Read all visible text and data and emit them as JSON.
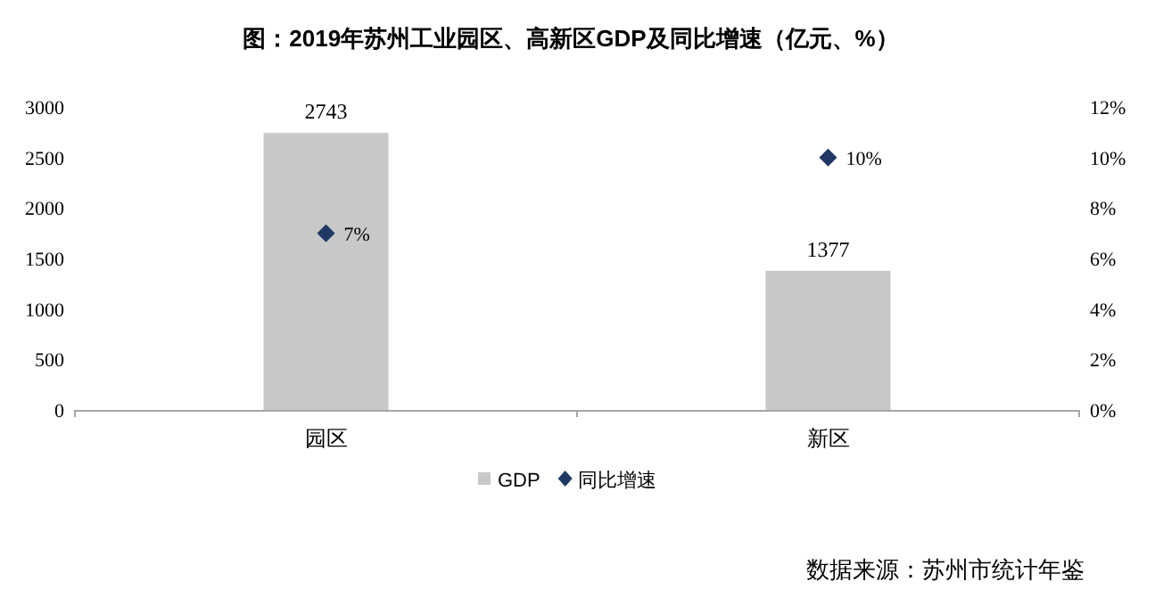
{
  "chart_data": {
    "type": "bar",
    "title": "图：2019年苏州工业园区、高新区GDP及同比增速（亿元、%）",
    "categories": [
      "园区",
      "新区"
    ],
    "series": [
      {
        "name": "GDP",
        "color": "#c8c8c8",
        "values": [
          2743,
          1377
        ],
        "value_labels": [
          "2743",
          "1377"
        ]
      },
      {
        "name": "同比增速",
        "type": "scatter",
        "axis": "y2",
        "color": "#1f3864",
        "marker": "diamond",
        "values": [
          7,
          10
        ],
        "value_labels": [
          "7%",
          "10%"
        ]
      }
    ],
    "ylim": [
      0,
      3000
    ],
    "yticks": [
      0,
      500,
      1000,
      1500,
      2000,
      2500,
      3000
    ],
    "y2lim": [
      0,
      12
    ],
    "y2ticks": [
      {
        "value": 0,
        "label": "0%"
      },
      {
        "value": 2,
        "label": "2%"
      },
      {
        "value": 4,
        "label": "4%"
      },
      {
        "value": 6,
        "label": "6%"
      },
      {
        "value": 8,
        "label": "8%"
      },
      {
        "value": 10,
        "label": "10%"
      },
      {
        "value": 12,
        "label": "12%"
      }
    ],
    "legend": "bottom",
    "grid": false,
    "annotations": [
      "数据来源：苏州市统计年鉴"
    ]
  }
}
